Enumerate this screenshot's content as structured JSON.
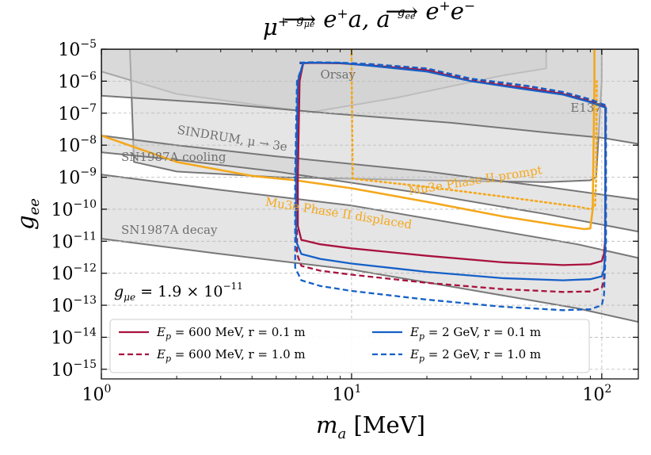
{
  "chart_data": {
    "type": "line",
    "title": "μ⁺ →(g_μe) e⁺a, a →(g_ee) e⁺e⁻",
    "title_parts": {
      "lhs": "μ",
      "lhs_sup": "+",
      "arrow1": "g",
      "arrow1_sub": "μe",
      "rhs1": "e",
      "rhs1_sup": "+",
      "rhs1_tail": "a, a",
      "arrow2": "g",
      "arrow2_sub": "ee",
      "rhs2a": "e",
      "rhs2a_sup": "+",
      "rhs2b": "e",
      "rhs2b_sup": "−"
    },
    "xlabel": "m_a [MeV]",
    "xlabel_parts": {
      "var": "m",
      "sub": "a",
      "unit": " [MeV]"
    },
    "ylabel": "g_ee",
    "ylabel_parts": {
      "var": "g",
      "sub": "ee"
    },
    "x_scale": "log",
    "y_scale": "log",
    "xlim": [
      1,
      140
    ],
    "ylim": [
      5e-16,
      1e-05
    ],
    "x_ticks": [
      {
        "value": 1,
        "base": "10",
        "exp": "0"
      },
      {
        "value": 10,
        "base": "10",
        "exp": "1"
      },
      {
        "value": 100,
        "base": "10",
        "exp": "2"
      }
    ],
    "y_ticks": [
      {
        "value": 1e-05,
        "base": "10",
        "exp": "−5"
      },
      {
        "value": 1e-06,
        "base": "10",
        "exp": "−6"
      },
      {
        "value": 1e-07,
        "base": "10",
        "exp": "−7"
      },
      {
        "value": 1e-08,
        "base": "10",
        "exp": "−8"
      },
      {
        "value": 1e-09,
        "base": "10",
        "exp": "−9"
      },
      {
        "value": 1e-10,
        "base": "10",
        "exp": "−10"
      },
      {
        "value": 1e-11,
        "base": "10",
        "exp": "−11"
      },
      {
        "value": 1e-12,
        "base": "10",
        "exp": "−12"
      },
      {
        "value": 1e-13,
        "base": "10",
        "exp": "−13"
      },
      {
        "value": 1e-14,
        "base": "10",
        "exp": "−14"
      },
      {
        "value": 1e-15,
        "base": "10",
        "exp": "−15"
      }
    ],
    "grid": true,
    "legend_location": "lower-center",
    "annotation": {
      "text": "g_μe = 1.9 × 10^−11",
      "lhs": "g",
      "lhs_sub": "μe",
      "mid": " = 1.9 × 10",
      "exp": "−11",
      "x": 1.08,
      "y": 2e-13
    },
    "colors": {
      "shade": "#d0d0d0",
      "outline": "#777777",
      "label_gray": "#6f6f6f",
      "mu3e": "#f4a81c",
      "crimson": "#a8123e",
      "blue": "#1560c8",
      "grid": "#b8b8b8"
    },
    "excluded_regions": [
      {
        "name": "Orsay",
        "label_at": [
          7.5,
          1.2e-06
        ],
        "polygon": [
          [
            1,
            2e-06
          ],
          [
            2,
            4e-07
          ],
          [
            5,
            1.5e-07
          ],
          [
            7,
            1.1e-07
          ],
          [
            15,
            3e-07
          ],
          [
            40,
            1.5e-06
          ],
          [
            60,
            2.5e-06
          ],
          [
            60,
            1e-05
          ],
          [
            1,
            1e-05
          ]
        ]
      },
      {
        "name": "E137",
        "label_at": [
          75,
          1.1e-07
        ],
        "polygon": [
          [
            1.3,
            1e-05
          ],
          [
            1.35,
            3e-09
          ],
          [
            2,
            1.5e-09
          ],
          [
            5,
            1e-09
          ],
          [
            20,
            8e-10
          ],
          [
            60,
            7e-10
          ],
          [
            90,
            8e-10
          ],
          [
            95,
            1e-09
          ],
          [
            100,
            1e-06
          ],
          [
            100,
            1e-05
          ]
        ]
      },
      {
        "name": "SINDRUM, μ → 3e",
        "label_at": [
          2.0,
          2.3e-08
        ],
        "polygon": [
          [
            1,
            3.5e-07
          ],
          [
            3,
            2e-07
          ],
          [
            8,
            1e-07
          ],
          [
            25,
            5e-08
          ],
          [
            60,
            2.5e-08
          ],
          [
            100,
            1.7e-08
          ],
          [
            140,
            1.1e-08
          ],
          [
            140,
            1e-05
          ],
          [
            1,
            1e-05
          ]
        ]
      },
      {
        "name": "SN1987A cooling",
        "label_at": [
          1.2,
          3.2e-09
        ],
        "polygon": [
          [
            1,
            2e-08
          ],
          [
            2,
            1e-08
          ],
          [
            5,
            4.5e-09
          ],
          [
            20,
            1.5e-09
          ],
          [
            60,
            5e-10
          ],
          [
            140,
            2e-10
          ],
          [
            140,
            2e-11
          ],
          [
            60,
            7e-11
          ],
          [
            20,
            3e-10
          ],
          [
            5,
            1.5e-09
          ],
          [
            2,
            3.5e-09
          ],
          [
            1,
            6e-09
          ]
        ]
      },
      {
        "name": "SN1987A decay",
        "label_at": [
          1.2,
          1.7e-11
        ],
        "polygon": [
          [
            1,
            1.2e-09
          ],
          [
            3,
            4e-10
          ],
          [
            10,
            1.3e-10
          ],
          [
            30,
            3e-11
          ],
          [
            80,
            8e-12
          ],
          [
            140,
            3e-12
          ],
          [
            140,
            3e-14
          ],
          [
            80,
            8e-14
          ],
          [
            30,
            3e-13
          ],
          [
            10,
            1.3e-12
          ],
          [
            3,
            4e-12
          ],
          [
            1,
            1.2e-11
          ]
        ]
      }
    ],
    "projections": [
      {
        "name": "Mu3e Phase II displaced",
        "style": "solid",
        "label_at": [
          4.5,
          1.3e-10
        ],
        "label_angle": 9,
        "x": [
          1,
          2,
          4,
          6,
          10,
          20,
          40,
          70,
          85,
          90,
          92,
          93.5,
          93.5
        ],
        "y": [
          2e-08,
          3e-09,
          1.1e-09,
          8e-10,
          4.5e-10,
          1.7e-10,
          6e-11,
          3e-11,
          2.4e-11,
          2.5e-11,
          1e-10,
          1e-06,
          1e-05
        ]
      },
      {
        "name": "Mu3e Phase II prompt",
        "style": "dotted",
        "label_at": [
          17,
          2.8e-10
        ],
        "label_angle": -9,
        "x": [
          10,
          10,
          10.1,
          20,
          40,
          80,
          90,
          94,
          95,
          95.5
        ],
        "y": [
          1e-05,
          4e-06,
          9e-10,
          5e-10,
          2.5e-10,
          1.2e-10,
          1e-10,
          1.2e-10,
          1e-09,
          1e-06
        ]
      }
    ],
    "series": [
      {
        "name": "E_p = 600 MeV, r = 0.1 m",
        "legend": {
          "var": "E",
          "sub": "p",
          "rest": " = 600 MeV, r = 0.1 m"
        },
        "color": "#a8123e",
        "style": "solid",
        "x": [
          6.4,
          6.2,
          6.1,
          6.1,
          6.3,
          7.5,
          10,
          20,
          40,
          70,
          90,
          100,
          102,
          103,
          103.3,
          103.3,
          101,
          90,
          70,
          50,
          30,
          20,
          12,
          9,
          7,
          6.2
        ],
        "y": [
          3.5e-06,
          1e-06,
          1e-09,
          3e-11,
          1.1e-11,
          8e-12,
          6e-12,
          3.5e-12,
          2.2e-12,
          1.8e-12,
          1.9e-12,
          2.4e-12,
          4e-12,
          1e-11,
          1e-09,
          1.6e-07,
          1.7e-07,
          2.3e-07,
          4e-07,
          6e-07,
          1e-06,
          2.2e-06,
          3.1e-06,
          3.6e-06,
          3.7e-06,
          3.6e-06
        ]
      },
      {
        "name": "E_p = 600 MeV, r = 1.0 m",
        "legend": {
          "var": "E",
          "sub": "p",
          "rest": " = 600 MeV, r = 1.0 m"
        },
        "color": "#a8123e",
        "style": "dashed",
        "x": [
          6.4,
          6.1,
          6.05,
          6.05,
          6.3,
          7.5,
          10,
          20,
          40,
          70,
          90,
          100,
          102,
          103.5,
          103.5,
          101,
          90,
          70,
          50,
          30,
          20,
          12,
          9,
          7,
          6.2
        ],
        "y": [
          3.3e-06,
          1e-06,
          1e-09,
          4e-12,
          1.7e-12,
          1.2e-12,
          9e-13,
          5e-13,
          3.2e-13,
          2.6e-13,
          2.7e-13,
          3.5e-13,
          6e-13,
          2e-11,
          1.7e-07,
          1.8e-07,
          2.6e-07,
          4.5e-07,
          7e-07,
          1.1e-06,
          2.4e-06,
          3.3e-06,
          3.7e-06,
          3.8e-06,
          3.7e-06
        ]
      },
      {
        "name": "E_p = 2 GeV, r = 0.1 m",
        "legend": {
          "var": "E",
          "sub": "p",
          "rest": " = 2 GeV, r = 0.1 m"
        },
        "color": "#1560c8",
        "style": "solid",
        "x": [
          6.4,
          6.1,
          6.0,
          6.0,
          6.3,
          7.5,
          10,
          20,
          40,
          70,
          90,
          100,
          102,
          103.2,
          103.5,
          101,
          90,
          70,
          50,
          30,
          20,
          12,
          9,
          7,
          6.2
        ],
        "y": [
          3.7e-06,
          1e-06,
          1e-09,
          1e-11,
          4e-12,
          2.8e-12,
          2e-12,
          1.1e-12,
          7e-13,
          6e-13,
          6.5e-13,
          8e-13,
          1.3e-12,
          5e-12,
          1.5e-07,
          1.6e-07,
          2.2e-07,
          3.8e-07,
          5.5e-07,
          1e-06,
          2e-06,
          3e-06,
          3.7e-06,
          3.8e-06,
          3.7e-06
        ]
      },
      {
        "name": "E_p = 2 GeV, r = 1.0 m",
        "legend": {
          "var": "E",
          "sub": "p",
          "rest": " = 2 GeV, r = 1.0 m"
        },
        "color": "#1560c8",
        "style": "dashed",
        "x": [
          6.4,
          6.05,
          5.95,
          5.95,
          6.3,
          7.5,
          10,
          20,
          40,
          70,
          90,
          100,
          102,
          104,
          104,
          101,
          90,
          70,
          50,
          30,
          20,
          12,
          9,
          7,
          6.2
        ],
        "y": [
          3.5e-06,
          1e-06,
          1e-09,
          1.5e-12,
          6e-13,
          4e-13,
          2.8e-13,
          1.5e-13,
          9e-14,
          7e-14,
          7.5e-14,
          1e-13,
          2e-13,
          1e-11,
          1.8e-07,
          1.9e-07,
          2.7e-07,
          4.6e-07,
          7.2e-07,
          1.2e-06,
          2.5e-06,
          3.4e-06,
          3.8e-06,
          3.9e-06,
          3.8e-06
        ]
      }
    ]
  }
}
